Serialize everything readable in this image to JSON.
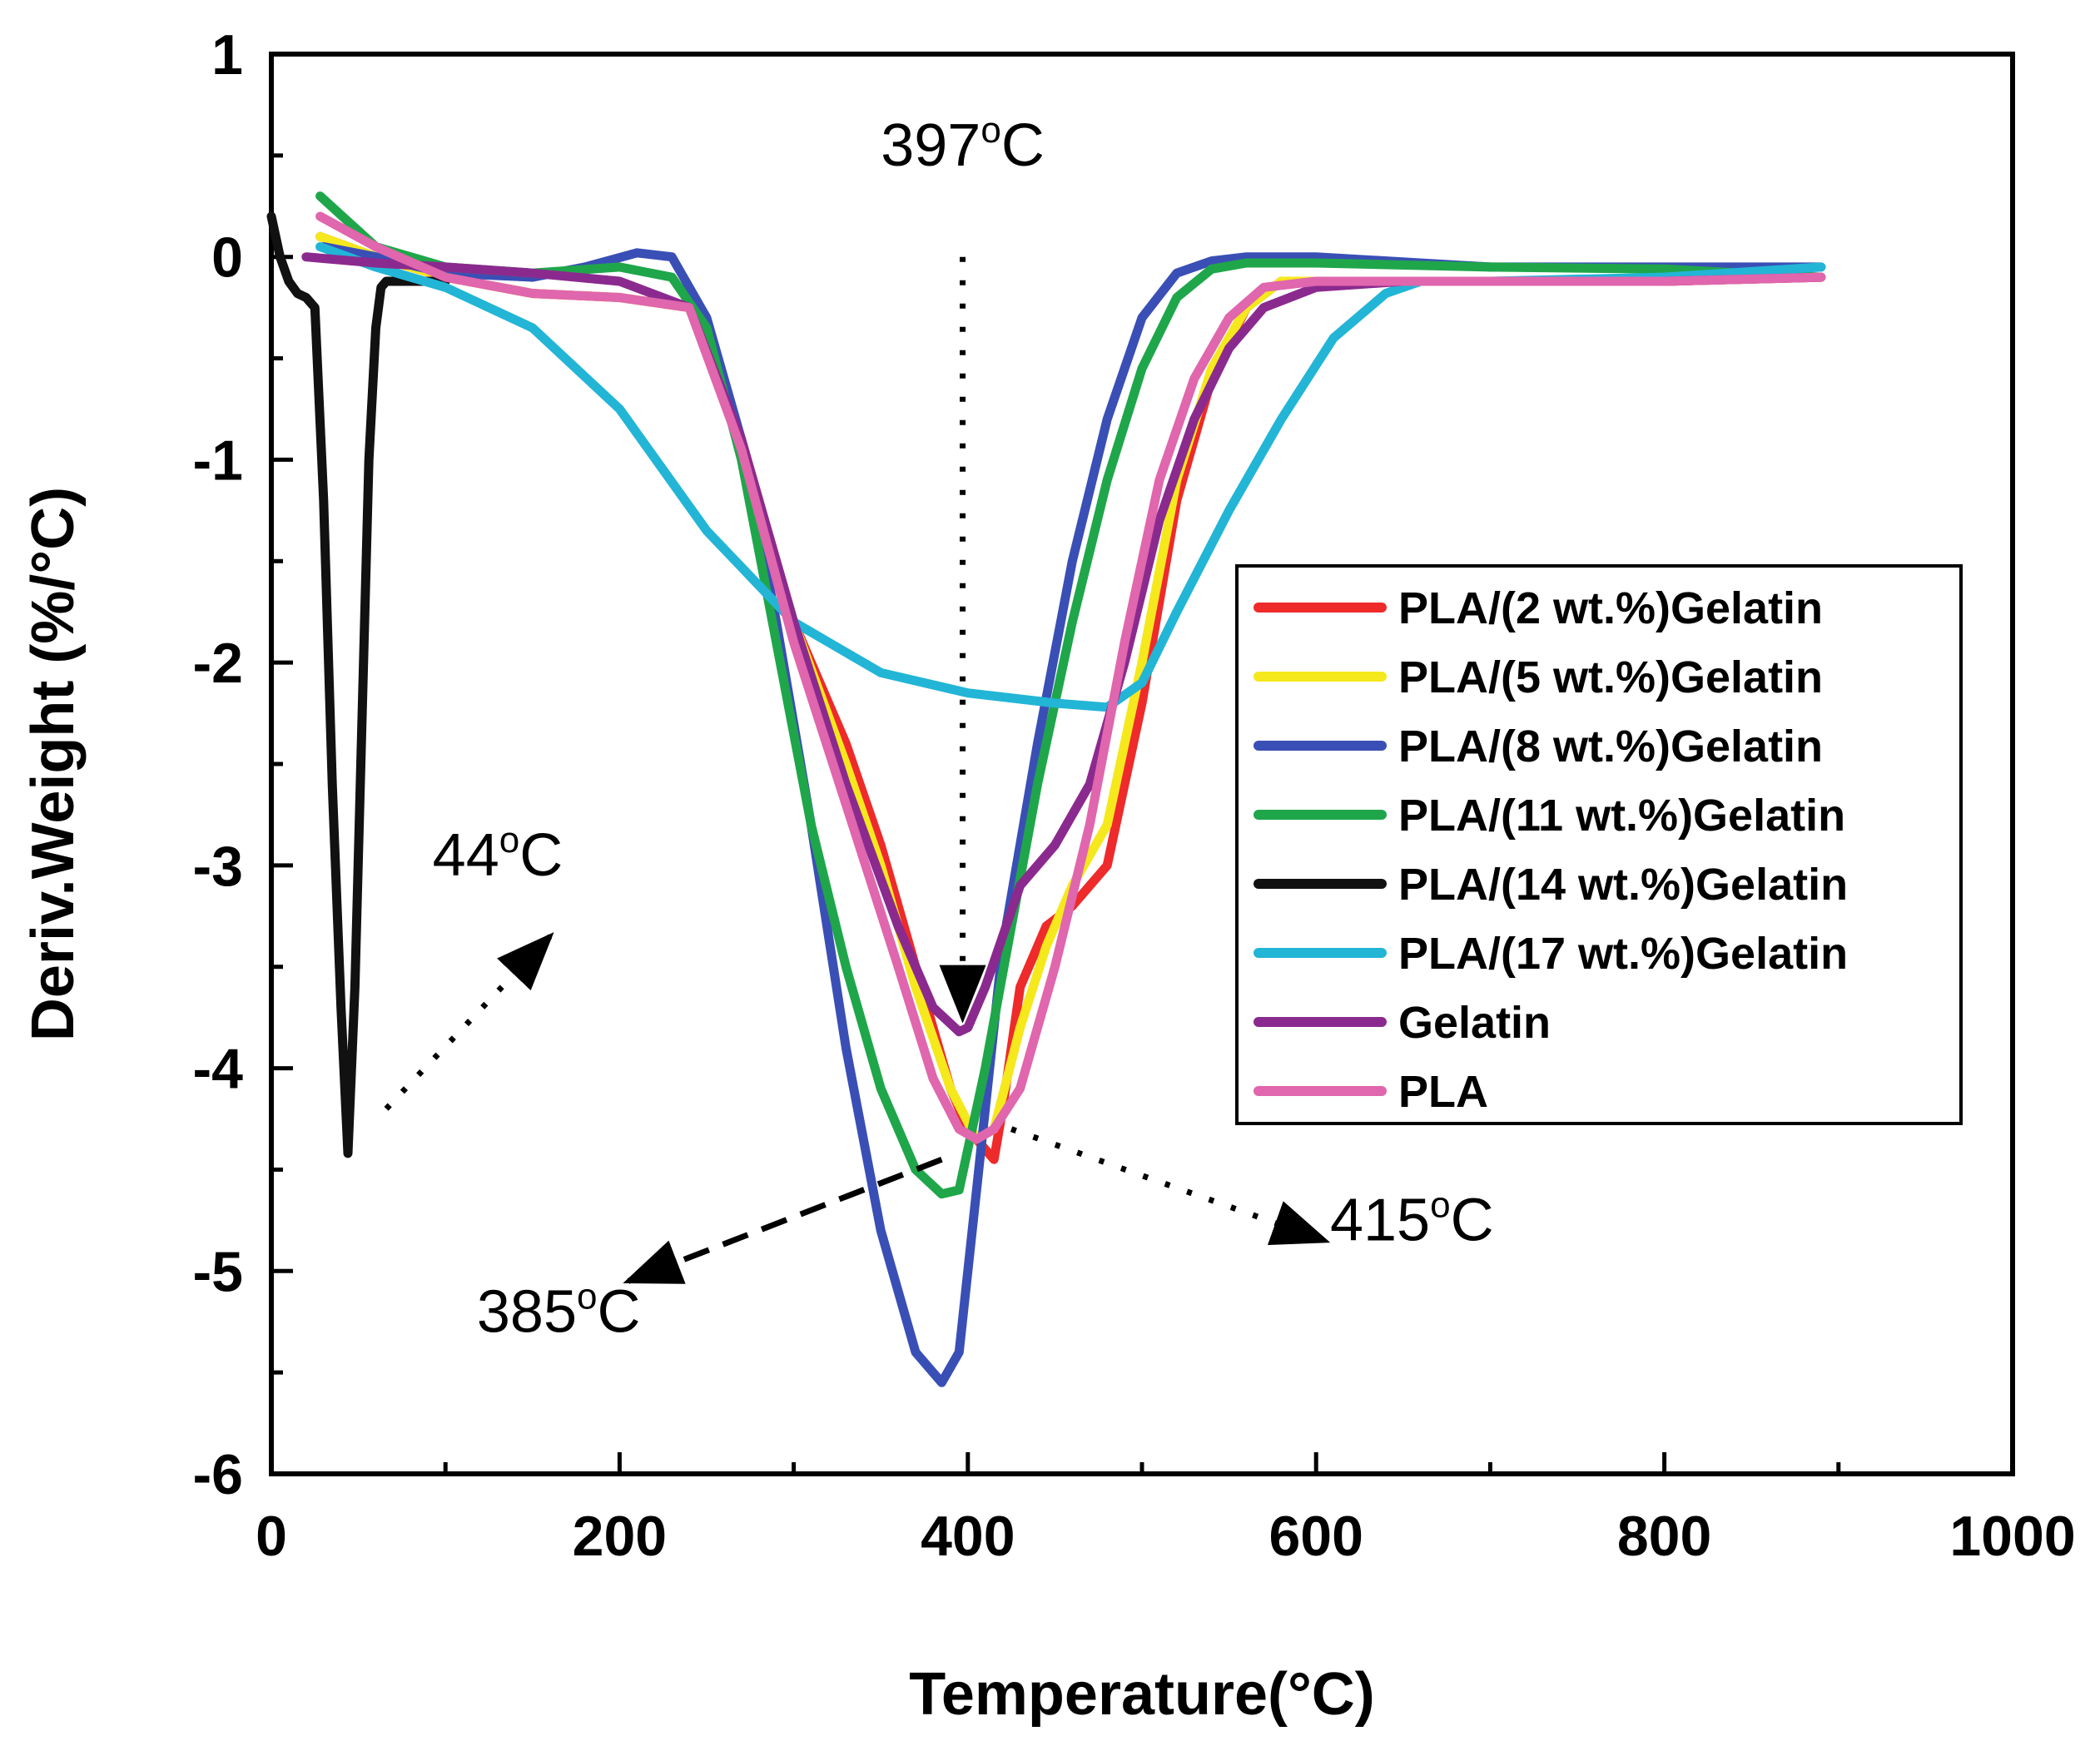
{
  "chart_data": {
    "type": "line",
    "title": "",
    "xlabel": "Temperature(°C)",
    "ylabel": "Deriv.Weight (%/°C)",
    "xlim": [
      0,
      1000
    ],
    "ylim": [
      -6,
      1
    ],
    "xticks": [
      0,
      200,
      400,
      600,
      800,
      1000
    ],
    "yticks": [
      1,
      0,
      -1,
      -2,
      -3,
      -4,
      -5,
      -6
    ],
    "grid": false,
    "legend_position": "right",
    "series": [
      {
        "name": "PLA/(2 wt.%)Gelatin",
        "color": "#ee2a2a",
        "x": [
          28,
          60,
          100,
          150,
          200,
          240,
          270,
          300,
          330,
          350,
          370,
          390,
          400,
          410,
          415,
          420,
          430,
          445,
          460,
          480,
          500,
          520,
          540,
          560,
          580,
          600,
          700,
          800,
          890
        ],
        "y": [
          0.1,
          0.0,
          -0.1,
          -0.18,
          -0.2,
          -0.25,
          -0.9,
          -1.8,
          -2.4,
          -2.9,
          -3.5,
          -4.1,
          -4.3,
          -4.4,
          -4.45,
          -4.2,
          -3.6,
          -3.3,
          -3.2,
          -3.0,
          -2.2,
          -1.2,
          -0.6,
          -0.25,
          -0.12,
          -0.12,
          -0.12,
          -0.12,
          -0.1
        ]
      },
      {
        "name": "PLA/(5 wt.%)Gelatin",
        "color": "#f5e81c",
        "x": [
          28,
          60,
          100,
          150,
          200,
          240,
          270,
          300,
          330,
          350,
          370,
          390,
          405,
          415,
          430,
          445,
          460,
          480,
          500,
          520,
          540,
          560,
          580,
          600,
          700,
          800,
          890
        ],
        "y": [
          0.1,
          0.0,
          -0.1,
          -0.18,
          -0.2,
          -0.25,
          -0.9,
          -1.8,
          -2.5,
          -3.0,
          -3.6,
          -4.1,
          -4.35,
          -4.3,
          -3.8,
          -3.4,
          -3.1,
          -2.8,
          -2.0,
          -1.1,
          -0.55,
          -0.25,
          -0.12,
          -0.12,
          -0.12,
          -0.12,
          -0.1
        ]
      },
      {
        "name": "PLA/(8 wt.%)Gelatin",
        "color": "#3a4fb5",
        "x": [
          30,
          60,
          100,
          150,
          180,
          210,
          230,
          250,
          270,
          290,
          310,
          330,
          350,
          370,
          385,
          395,
          405,
          420,
          440,
          460,
          480,
          500,
          520,
          540,
          560,
          600,
          700,
          800,
          890
        ],
        "y": [
          0.05,
          0.0,
          -0.08,
          -0.1,
          -0.05,
          0.02,
          0.0,
          -0.3,
          -0.9,
          -1.8,
          -2.8,
          -3.9,
          -4.8,
          -5.4,
          -5.55,
          -5.4,
          -4.6,
          -3.4,
          -2.4,
          -1.5,
          -0.8,
          -0.3,
          -0.08,
          -0.02,
          0.0,
          0.0,
          -0.05,
          -0.05,
          -0.05
        ]
      },
      {
        "name": "PLA/(11 wt.%)Gelatin",
        "color": "#1fa64a",
        "x": [
          28,
          60,
          100,
          150,
          200,
          230,
          250,
          270,
          290,
          310,
          330,
          350,
          370,
          385,
          395,
          410,
          425,
          440,
          460,
          480,
          500,
          520,
          540,
          560,
          600,
          700,
          800,
          890
        ],
        "y": [
          0.3,
          0.05,
          -0.05,
          -0.08,
          -0.05,
          -0.1,
          -0.35,
          -1.0,
          -1.9,
          -2.8,
          -3.5,
          -4.1,
          -4.5,
          -4.62,
          -4.6,
          -4.0,
          -3.3,
          -2.6,
          -1.8,
          -1.1,
          -0.55,
          -0.2,
          -0.06,
          -0.03,
          -0.03,
          -0.05,
          -0.06,
          -0.1
        ]
      },
      {
        "name": "PLA/(14 wt.%)Gelatin",
        "color": "#111111",
        "x": [
          0,
          5,
          10,
          15,
          20,
          25,
          30,
          35,
          40,
          44,
          48,
          52,
          56,
          60,
          63,
          66,
          70,
          80,
          100
        ],
        "y": [
          0.2,
          0.0,
          -0.12,
          -0.18,
          -0.2,
          -0.25,
          -1.2,
          -2.6,
          -3.7,
          -4.42,
          -3.6,
          -2.3,
          -1.0,
          -0.35,
          -0.15,
          -0.12,
          -0.12,
          -0.12,
          -0.12
        ]
      },
      {
        "name": "PLA/(17 wt.%)Gelatin",
        "color": "#22b5d6",
        "x": [
          28,
          60,
          100,
          150,
          200,
          250,
          300,
          350,
          400,
          450,
          480,
          500,
          520,
          550,
          580,
          610,
          640,
          660,
          700,
          800,
          890
        ],
        "y": [
          0.05,
          -0.05,
          -0.15,
          -0.35,
          -0.75,
          -1.35,
          -1.8,
          -2.05,
          -2.15,
          -2.2,
          -2.22,
          -2.1,
          -1.75,
          -1.25,
          -0.8,
          -0.4,
          -0.18,
          -0.12,
          -0.12,
          -0.1,
          -0.05
        ]
      },
      {
        "name": "Gelatin",
        "color": "#8b2a8e",
        "x": [
          20,
          60,
          100,
          150,
          200,
          240,
          270,
          300,
          330,
          360,
          380,
          395,
          400,
          410,
          430,
          450,
          470,
          490,
          510,
          530,
          550,
          570,
          600,
          650,
          700,
          800,
          890
        ],
        "y": [
          0.0,
          -0.03,
          -0.05,
          -0.08,
          -0.12,
          -0.25,
          -0.9,
          -1.8,
          -2.6,
          -3.3,
          -3.7,
          -3.82,
          -3.8,
          -3.6,
          -3.1,
          -2.9,
          -2.6,
          -2.0,
          -1.3,
          -0.8,
          -0.45,
          -0.25,
          -0.15,
          -0.12,
          -0.12,
          -0.12,
          -0.1
        ]
      },
      {
        "name": "PLA",
        "color": "#e066ad",
        "x": [
          28,
          60,
          100,
          150,
          200,
          240,
          270,
          300,
          330,
          360,
          380,
          395,
          405,
          415,
          430,
          450,
          470,
          490,
          510,
          530,
          550,
          570,
          600,
          700,
          800,
          890
        ],
        "y": [
          0.2,
          0.05,
          -0.1,
          -0.18,
          -0.2,
          -0.25,
          -0.95,
          -1.9,
          -2.7,
          -3.5,
          -4.05,
          -4.3,
          -4.35,
          -4.3,
          -4.1,
          -3.5,
          -2.8,
          -1.9,
          -1.1,
          -0.6,
          -0.3,
          -0.15,
          -0.12,
          -0.12,
          -0.12,
          -0.1
        ]
      }
    ],
    "annotations": [
      {
        "text": "397",
        "unit": "C",
        "degree": "o",
        "kind": "vertical-dotted",
        "from": [
          397,
          0.0
        ],
        "to": [
          397,
          -3.75
        ],
        "label_at": [
          397,
          0.45
        ]
      },
      {
        "text": "44",
        "unit": "C",
        "degree": "o",
        "kind": "diagonal-dotted",
        "from": [
          66,
          -4.2
        ],
        "to": [
          160,
          -3.35
        ],
        "label_at": [
          130,
          -3.05
        ]
      },
      {
        "text": "385",
        "unit": "C",
        "degree": "o",
        "kind": "dashed",
        "from": [
          385,
          -4.45
        ],
        "to": [
          205,
          -5.05
        ],
        "label_at": [
          165,
          -5.3
        ]
      },
      {
        "text": "415",
        "unit": "C",
        "degree": "o",
        "kind": "diagonal-dotted",
        "from": [
          425,
          -4.3
        ],
        "to": [
          605,
          -4.85
        ],
        "label_at": [
          655,
          -4.85
        ]
      }
    ]
  }
}
